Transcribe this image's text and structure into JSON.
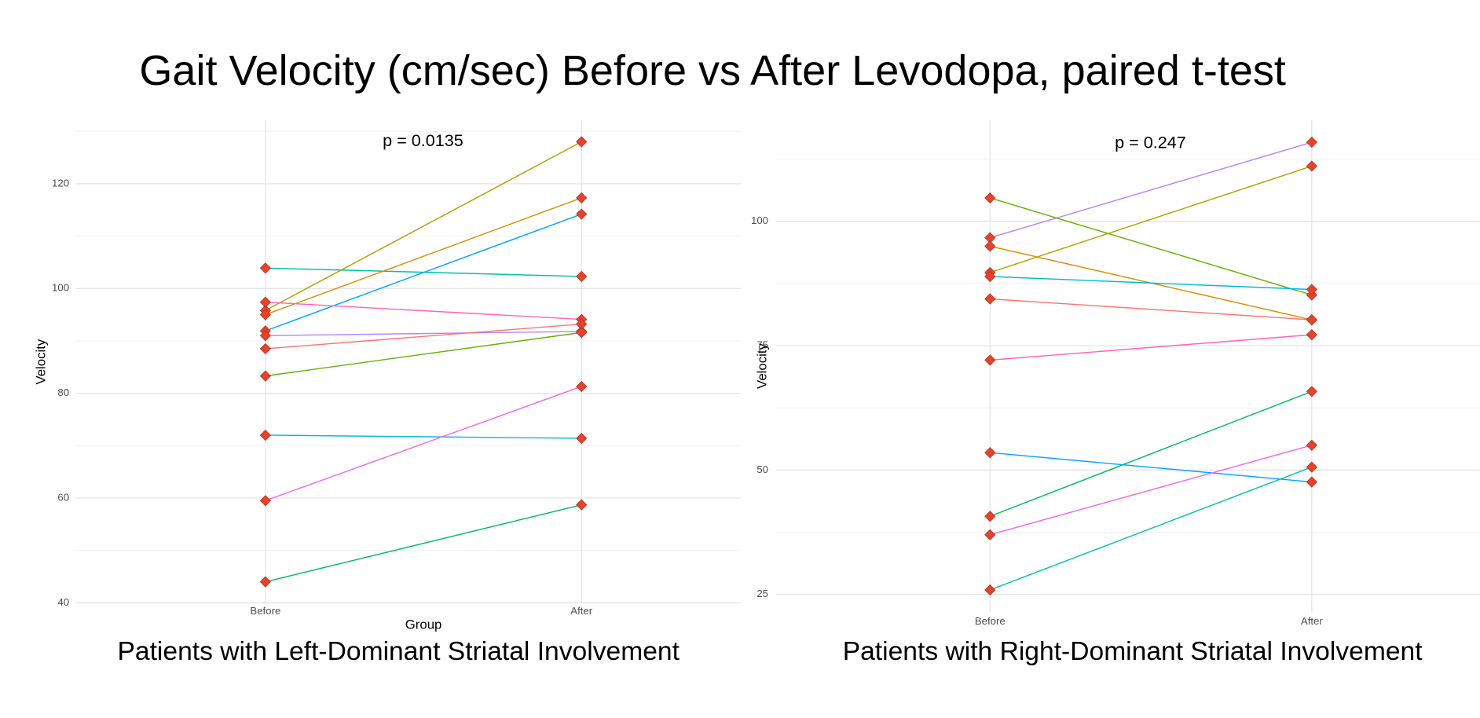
{
  "title": "Gait Velocity (cm/sec) Before vs After Levodopa, paired t-test",
  "chart_data": [
    {
      "type": "line",
      "subtitle": "Patients with Left-Dominant Striatal Involvement",
      "annotation": "p = 0.0135",
      "xlabel": "Group",
      "ylabel": "Velocity",
      "categories": [
        "Before",
        "After"
      ],
      "ylim": [
        39.8,
        132.2
      ],
      "yticks": [
        40,
        60,
        80,
        100,
        120
      ],
      "minor_yticks": [
        50,
        70,
        90,
        110,
        130
      ],
      "grid": true,
      "marker_color": "#e5432c",
      "series": [
        {
          "color": "#00C1A7",
          "values": [
            103.9,
            102.3
          ]
        },
        {
          "color": "#AEA200",
          "values": [
            95.8,
            128
          ]
        },
        {
          "color": "#DB8E00",
          "values": [
            95,
            117.3
          ]
        },
        {
          "color": "#00A6FF",
          "values": [
            91.9,
            114.2
          ]
        },
        {
          "color": "#FF63B6",
          "values": [
            97.4,
            94.1
          ]
        },
        {
          "color": "#B385FF",
          "values": [
            91,
            91.8
          ]
        },
        {
          "color": "#F8766D",
          "values": [
            88.5,
            93.2
          ]
        },
        {
          "color": "#64B200",
          "values": [
            83.3,
            91.6
          ]
        },
        {
          "color": "#00BADE",
          "values": [
            72,
            71.4
          ]
        },
        {
          "color": "#EF67EB",
          "values": [
            59.5,
            81.3
          ]
        },
        {
          "color": "#00BD5C",
          "values": [
            44,
            58.7
          ]
        }
      ]
    },
    {
      "type": "line",
      "subtitle": "Patients with Right-Dominant Striatal Involvement",
      "annotation": "p = 0.247",
      "ylabel": "Velocity",
      "categories": [
        "Before",
        "After"
      ],
      "ylim": [
        21.4,
        120.4
      ],
      "yticks": [
        25,
        50,
        75,
        100
      ],
      "minor_yticks": [
        37.5,
        62.5,
        87.5,
        112.5
      ],
      "grid": true,
      "marker_color": "#e5432c",
      "series": [
        {
          "color": "#B385FF",
          "values": [
            96.7,
            115.9
          ]
        },
        {
          "color": "#AEA200",
          "values": [
            89.7,
            111.1
          ]
        },
        {
          "color": "#64B200",
          "values": [
            104.7,
            85.2
          ]
        },
        {
          "color": "#DB8E00",
          "values": [
            95,
            80.2
          ]
        },
        {
          "color": "#00BADE",
          "values": [
            88.9,
            86.3
          ]
        },
        {
          "color": "#F8766D",
          "values": [
            84.4,
            80.2
          ]
        },
        {
          "color": "#FF63B6",
          "values": [
            72.1,
            77.2
          ]
        },
        {
          "color": "#00A6FF",
          "values": [
            53.5,
            47.6
          ]
        },
        {
          "color": "#00BD5C",
          "values": [
            40.7,
            65.8
          ]
        },
        {
          "color": "#EF67EB",
          "values": [
            37,
            55
          ]
        },
        {
          "color": "#00C1A7",
          "values": [
            25.9,
            50.6
          ]
        }
      ]
    }
  ]
}
